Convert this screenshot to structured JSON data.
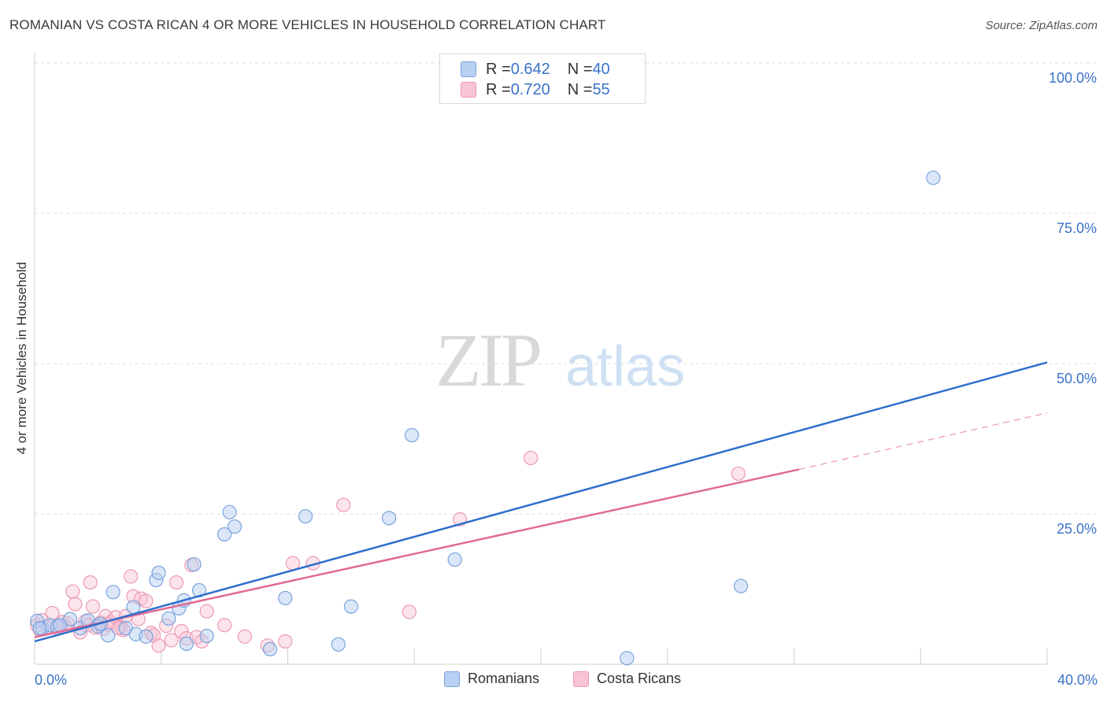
{
  "header": {
    "title": "ROMANIAN VS COSTA RICAN 4 OR MORE VEHICLES IN HOUSEHOLD CORRELATION CHART",
    "source": "Source: ZipAtlas.com"
  },
  "watermark": {
    "zip": "ZIP",
    "atlas": "atlas"
  },
  "legend": {
    "rows": [
      {
        "r_label": "R = ",
        "r_value": "0.642",
        "n_label": "N = ",
        "n_value": "40"
      },
      {
        "r_label": "R = ",
        "r_value": "0.720",
        "n_label": "N = ",
        "n_value": "55"
      }
    ]
  },
  "bottom_legend": {
    "romanians": "Romanians",
    "costa_ricans": "Costa Ricans"
  },
  "colors": {
    "romanians_fill": "#b8d0f2",
    "romanians_stroke": "#7aa3dd",
    "romanians_line": "#2f6fcc",
    "costa_fill": "#f8c3d3",
    "costa_stroke": "#ec9ab4",
    "costa_line": "#e06a93",
    "grid": "#dcdcdc",
    "axis_text": "#3a72c8"
  },
  "chart_data": {
    "type": "scatter",
    "title": "ROMANIAN VS COSTA RICAN 4 OR MORE VEHICLES IN HOUSEHOLD CORRELATION CHART",
    "xlabel": "",
    "ylabel": "4 or more Vehicles in Household",
    "xlim": [
      0,
      40
    ],
    "ylim": [
      0,
      100
    ],
    "x_tick_labels": [
      "0.0%",
      "40.0%"
    ],
    "y_tick_labels": [
      "100.0%",
      "75.0%",
      "50.0%",
      "25.0%"
    ],
    "y_ticks": [
      100,
      75,
      50,
      25
    ],
    "grid": true,
    "series": [
      {
        "name": "Romanians",
        "r": 0.642,
        "n": 40,
        "trend": {
          "x": [
            0,
            40
          ],
          "y": [
            3.8,
            50.2
          ]
        },
        "points": [
          [
            0.1,
            7.2
          ],
          [
            0.3,
            6.0
          ],
          [
            0.6,
            6.5
          ],
          [
            0.9,
            6.3
          ],
          [
            1.4,
            7.5
          ],
          [
            1.8,
            6.0
          ],
          [
            2.1,
            7.3
          ],
          [
            2.5,
            6.3
          ],
          [
            2.9,
            4.8
          ],
          [
            3.1,
            12.0
          ],
          [
            3.6,
            6.0
          ],
          [
            3.9,
            9.5
          ],
          [
            4.0,
            5.0
          ],
          [
            4.4,
            4.6
          ],
          [
            4.8,
            14.0
          ],
          [
            4.9,
            15.2
          ],
          [
            5.3,
            7.6
          ],
          [
            5.7,
            9.3
          ],
          [
            5.9,
            10.6
          ],
          [
            6.0,
            3.4
          ],
          [
            6.3,
            16.6
          ],
          [
            6.5,
            12.3
          ],
          [
            6.8,
            4.7
          ],
          [
            7.5,
            21.6
          ],
          [
            7.7,
            25.3
          ],
          [
            7.9,
            22.9
          ],
          [
            9.3,
            2.5
          ],
          [
            9.9,
            11.0
          ],
          [
            10.7,
            24.6
          ],
          [
            12.0,
            3.3
          ],
          [
            12.5,
            9.6
          ],
          [
            14.0,
            24.3
          ],
          [
            14.9,
            38.1
          ],
          [
            16.6,
            17.4
          ],
          [
            23.4,
            1.0
          ],
          [
            27.9,
            13.0
          ],
          [
            35.5,
            80.9
          ],
          [
            0.2,
            6.0
          ],
          [
            1.0,
            6.5
          ],
          [
            2.6,
            6.7
          ]
        ]
      },
      {
        "name": "Costa Ricans",
        "r": 0.72,
        "n": 55,
        "trend": {
          "x": [
            0,
            30.2
          ],
          "y": [
            4.5,
            32.4
          ]
        },
        "trend_extension": {
          "x": [
            30.2,
            40
          ],
          "y": [
            32.4,
            41.8
          ]
        },
        "points": [
          [
            0.1,
            6.5
          ],
          [
            0.3,
            7.3
          ],
          [
            0.5,
            6.2
          ],
          [
            0.7,
            8.5
          ],
          [
            0.9,
            6.0
          ],
          [
            1.1,
            7.0
          ],
          [
            1.3,
            6.8
          ],
          [
            1.5,
            12.1
          ],
          [
            1.6,
            10.0
          ],
          [
            1.8,
            5.3
          ],
          [
            2.0,
            7.1
          ],
          [
            2.1,
            6.5
          ],
          [
            2.2,
            13.6
          ],
          [
            2.3,
            9.6
          ],
          [
            2.4,
            6.1
          ],
          [
            2.6,
            6.9
          ],
          [
            2.7,
            5.9
          ],
          [
            2.8,
            8.0
          ],
          [
            3.0,
            7.0
          ],
          [
            3.2,
            7.8
          ],
          [
            3.4,
            6.2
          ],
          [
            3.5,
            5.7
          ],
          [
            3.6,
            8.0
          ],
          [
            3.8,
            14.6
          ],
          [
            3.9,
            11.3
          ],
          [
            4.1,
            7.5
          ],
          [
            4.2,
            10.9
          ],
          [
            4.4,
            10.5
          ],
          [
            4.6,
            5.2
          ],
          [
            4.7,
            4.8
          ],
          [
            4.9,
            3.1
          ],
          [
            5.2,
            6.4
          ],
          [
            5.4,
            4.0
          ],
          [
            5.6,
            13.6
          ],
          [
            5.8,
            5.5
          ],
          [
            6.0,
            4.3
          ],
          [
            6.2,
            16.5
          ],
          [
            6.4,
            4.5
          ],
          [
            6.6,
            3.8
          ],
          [
            6.8,
            8.8
          ],
          [
            7.5,
            6.5
          ],
          [
            8.3,
            4.6
          ],
          [
            9.2,
            3.1
          ],
          [
            9.9,
            3.8
          ],
          [
            10.2,
            16.8
          ],
          [
            11.0,
            16.8
          ],
          [
            12.2,
            26.5
          ],
          [
            14.8,
            8.7
          ],
          [
            16.8,
            24.1
          ],
          [
            19.6,
            34.3
          ],
          [
            27.8,
            31.7
          ],
          [
            0.2,
            5.8
          ],
          [
            1.2,
            6.3
          ],
          [
            2.9,
            6.6
          ],
          [
            3.3,
            6.0
          ]
        ]
      }
    ]
  }
}
